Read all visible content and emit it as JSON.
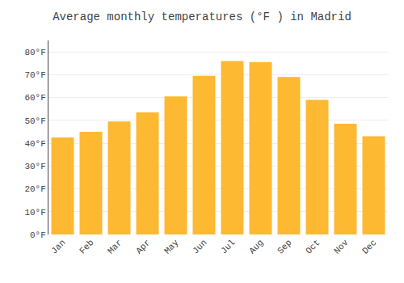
{
  "chart_data": {
    "type": "bar",
    "title": "Average monthly temperatures (°F ) in Madrid",
    "categories": [
      "Jan",
      "Feb",
      "Mar",
      "Apr",
      "May",
      "Jun",
      "Jul",
      "Aug",
      "Sep",
      "Oct",
      "Nov",
      "Dec"
    ],
    "values": [
      42.5,
      45,
      49.5,
      53.5,
      60.5,
      69.5,
      76,
      75.5,
      69,
      59,
      48.5,
      43
    ],
    "color": "#FDB931",
    "ylim": [
      0,
      85
    ],
    "yticks": [
      {
        "value": 0,
        "label": "0°F"
      },
      {
        "value": 10,
        "label": "10°F"
      },
      {
        "value": 20,
        "label": "20°F"
      },
      {
        "value": 30,
        "label": "30°F"
      },
      {
        "value": 40,
        "label": "40°F"
      },
      {
        "value": 50,
        "label": "50°F"
      },
      {
        "value": 60,
        "label": "60°F"
      },
      {
        "value": 70,
        "label": "70°F"
      },
      {
        "value": 80,
        "label": "80°F"
      }
    ],
    "grid": true
  }
}
